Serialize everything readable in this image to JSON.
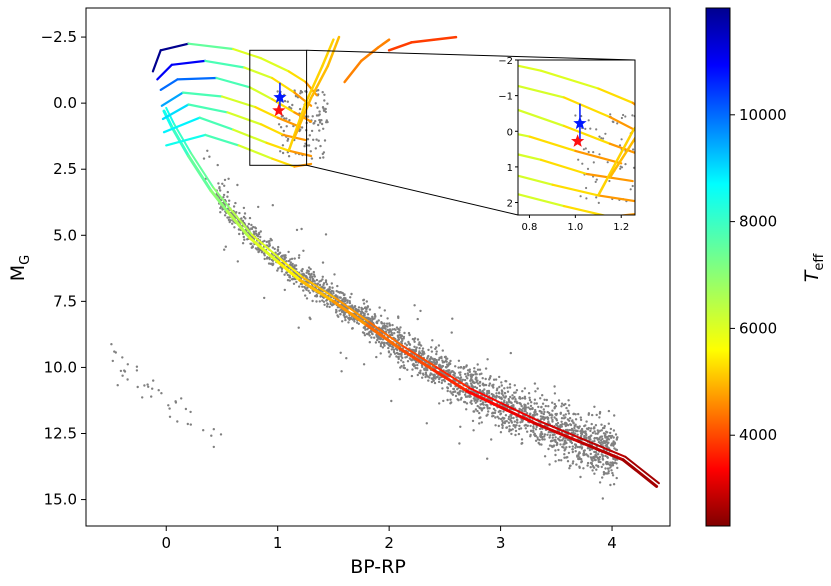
{
  "chart_data": {
    "type": "scatter",
    "title": "",
    "xlabel": "BP-RP",
    "ylabel_main": "M",
    "ylabel_sub": "G",
    "xlim": [
      -0.72,
      4.52
    ],
    "ylim": [
      16.0,
      -3.6
    ],
    "y_inverted": true,
    "xticks": [
      "0",
      "1",
      "2",
      "3",
      "4"
    ],
    "xtick_values": [
      0,
      1,
      2,
      3,
      4
    ],
    "yticks": [
      "−2.5",
      "0.0",
      "2.5",
      "5.0",
      "7.5",
      "10.0",
      "12.5",
      "15.0"
    ],
    "ytick_values": [
      -2.5,
      0,
      2.5,
      5,
      7.5,
      10,
      12.5,
      15
    ],
    "grid": false,
    "scatter_color": "#808080",
    "main_sequence": [
      [
        -0.02,
        0.3
      ],
      [
        0.05,
        0.9
      ],
      [
        0.2,
        2.0
      ],
      [
        0.4,
        3.3
      ],
      [
        0.55,
        4.1
      ],
      [
        0.75,
        5.1
      ],
      [
        1.0,
        6.0
      ],
      [
        1.2,
        6.7
      ],
      [
        1.5,
        7.5
      ],
      [
        1.8,
        8.4
      ],
      [
        2.1,
        9.3
      ],
      [
        2.4,
        10.1
      ],
      [
        2.7,
        10.9
      ],
      [
        3.0,
        11.5
      ],
      [
        3.3,
        12.1
      ],
      [
        3.7,
        12.8
      ],
      [
        4.1,
        13.5
      ],
      [
        4.4,
        14.5
      ]
    ],
    "isochrones": [
      {
        "teff": [
          12000,
          7500,
          6000,
          5300,
          4700
        ],
        "points": [
          [
            -0.12,
            -1.2
          ],
          [
            -0.05,
            -2.0
          ],
          [
            0.2,
            -2.25
          ],
          [
            0.6,
            -2.05
          ],
          [
            0.85,
            -1.7
          ],
          [
            1.1,
            -1.2
          ],
          [
            1.25,
            -0.8
          ],
          [
            1.35,
            -0.3
          ]
        ]
      },
      {
        "teff": [
          11000,
          7800,
          6100,
          5300,
          4700
        ],
        "points": [
          [
            -0.08,
            -0.9
          ],
          [
            0.05,
            -1.45
          ],
          [
            0.35,
            -1.6
          ],
          [
            0.7,
            -1.35
          ],
          [
            0.95,
            -0.95
          ],
          [
            1.15,
            -0.4
          ],
          [
            1.3,
            0.1
          ]
        ]
      },
      {
        "teff": [
          10000,
          7800,
          6100,
          5300,
          4700
        ],
        "points": [
          [
            -0.05,
            -0.5
          ],
          [
            0.1,
            -0.9
          ],
          [
            0.45,
            -0.95
          ],
          [
            0.75,
            -0.6
          ],
          [
            0.95,
            -0.15
          ],
          [
            1.15,
            0.35
          ],
          [
            1.3,
            0.7
          ]
        ]
      },
      {
        "teff": [
          9500,
          7800,
          6100,
          5300,
          4700
        ],
        "points": [
          [
            -0.04,
            0.1
          ],
          [
            0.15,
            -0.4
          ],
          [
            0.5,
            -0.25
          ],
          [
            0.8,
            0.15
          ],
          [
            1.0,
            0.55
          ],
          [
            1.2,
            0.9
          ]
        ]
      },
      {
        "teff": [
          9000,
          7800,
          6100,
          5300,
          4700
        ],
        "points": [
          [
            -0.03,
            0.6
          ],
          [
            0.2,
            0.05
          ],
          [
            0.55,
            0.35
          ],
          [
            0.85,
            0.8
          ],
          [
            1.05,
            1.2
          ],
          [
            1.25,
            1.4
          ]
        ]
      },
      {
        "teff": [
          8800,
          7800,
          6100,
          5300,
          4700
        ],
        "points": [
          [
            -0.02,
            1.1
          ],
          [
            0.3,
            0.55
          ],
          [
            0.6,
            1.0
          ],
          [
            0.9,
            1.5
          ],
          [
            1.1,
            1.8
          ],
          [
            1.3,
            2.0
          ]
        ]
      },
      {
        "teff": [
          8500,
          7800,
          6100,
          5300,
          4700
        ],
        "points": [
          [
            0.0,
            1.6
          ],
          [
            0.35,
            1.2
          ],
          [
            0.65,
            1.6
          ],
          [
            0.95,
            2.1
          ],
          [
            1.15,
            2.4
          ],
          [
            1.3,
            2.3
          ]
        ]
      }
    ],
    "giant_branches": [
      {
        "teff": 5200,
        "points": [
          [
            1.1,
            1.8
          ],
          [
            1.25,
            0.0
          ],
          [
            1.4,
            -1.4
          ],
          [
            1.5,
            -2.4
          ]
        ]
      },
      {
        "teff": 5000,
        "points": [
          [
            1.15,
            1.3
          ],
          [
            1.3,
            -0.2
          ],
          [
            1.45,
            -1.4
          ],
          [
            1.55,
            -2.5
          ]
        ]
      },
      {
        "teff": 4500,
        "points": [
          [
            1.6,
            -0.8
          ],
          [
            1.75,
            -1.6
          ],
          [
            1.9,
            -2.1
          ],
          [
            2.0,
            -2.4
          ]
        ]
      },
      {
        "teff": 3900,
        "points": [
          [
            2.0,
            -2.0
          ],
          [
            2.2,
            -2.3
          ],
          [
            2.4,
            -2.4
          ],
          [
            2.6,
            -2.5
          ]
        ]
      }
    ],
    "markers": [
      {
        "label": "",
        "x": 1.02,
        "y": -0.22,
        "yerr": 0.55,
        "color": "#0018ff",
        "shape": "star"
      },
      {
        "label": "",
        "x": 1.01,
        "y": 0.28,
        "color": "#ff1010",
        "shape": "star"
      }
    ],
    "inset": {
      "xlim": [
        0.75,
        1.26
      ],
      "ylim": [
        2.35,
        -2.0
      ],
      "xticks": [
        "0.8",
        "1.0",
        "1.2"
      ],
      "xtick_values": [
        0.8,
        1.0,
        1.2
      ],
      "yticks": [
        "−2",
        "−1",
        "0",
        "1",
        "2"
      ],
      "ytick_values": [
        -2,
        -1,
        0,
        1,
        2
      ]
    },
    "colorbar": {
      "label_main": "T",
      "label_sub": "eff",
      "range": [
        2300,
        12000
      ],
      "ticks": [
        "4000",
        "6000",
        "8000",
        "10000"
      ],
      "tick_values": [
        4000,
        6000,
        8000,
        10000
      ],
      "colormap": "jet"
    }
  }
}
